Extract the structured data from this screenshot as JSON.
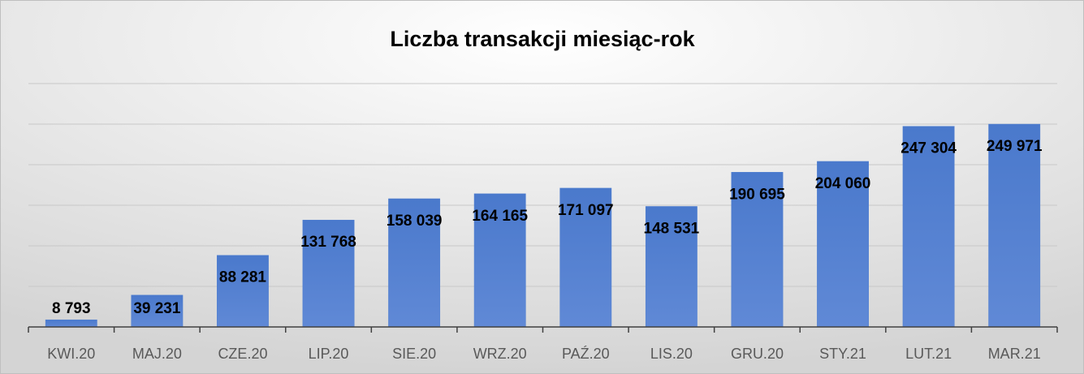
{
  "chart_data": {
    "type": "bar",
    "title": "Liczba transakcji miesiąc-rok",
    "categories": [
      "KWI.20",
      "MAJ.20",
      "CZE.20",
      "LIP.20",
      "SIE.20",
      "WRZ.20",
      "PAŹ.20",
      "LIS.20",
      "GRU.20",
      "STY.21",
      "LUT.21",
      "MAR.21"
    ],
    "values": [
      8793,
      39231,
      88281,
      131768,
      158039,
      164165,
      171097,
      148531,
      190695,
      204060,
      247304,
      249971
    ],
    "value_labels": [
      "8 793",
      "39 231",
      "88 281",
      "131 768",
      "158 039",
      "164 165",
      "171 097",
      "148 531",
      "190 695",
      "204 060",
      "247 304",
      "249 971"
    ],
    "color": "#4f7fd0",
    "ylim": [
      0,
      300000
    ],
    "yticks": [
      0,
      50000,
      100000,
      150000,
      200000,
      250000,
      300000
    ],
    "grid": true
  }
}
